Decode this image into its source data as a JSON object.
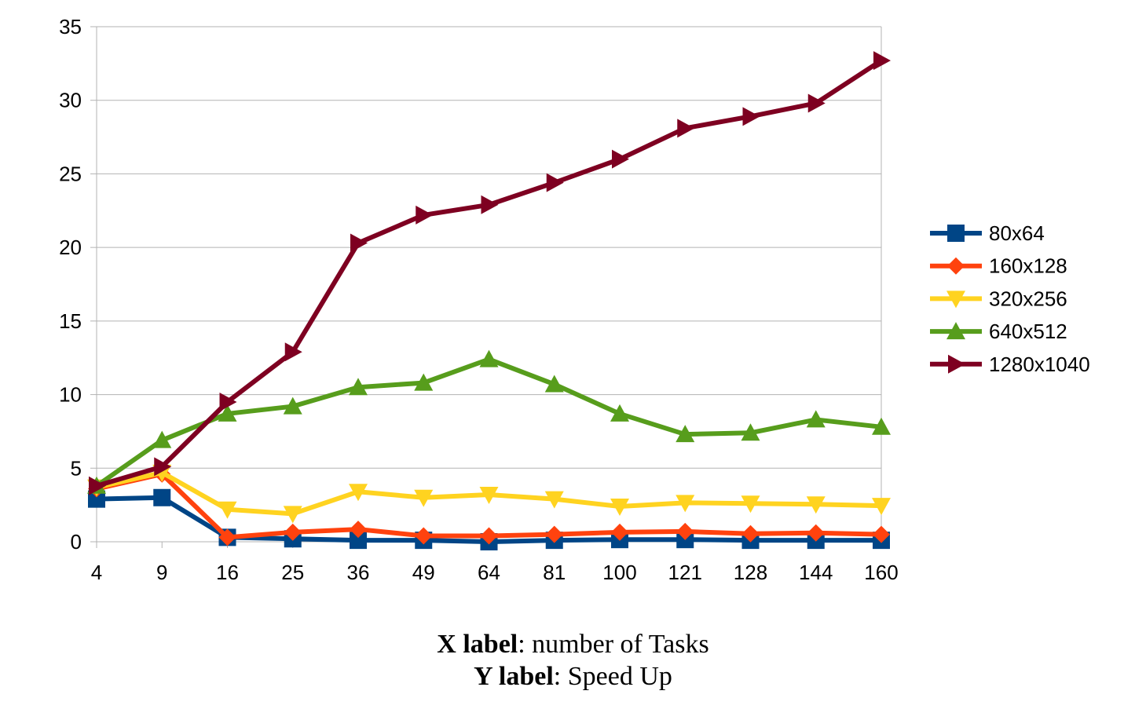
{
  "chart_data": {
    "type": "line",
    "categories": [
      "4",
      "9",
      "16",
      "25",
      "36",
      "49",
      "64",
      "81",
      "100",
      "121",
      "128",
      "144",
      "160"
    ],
    "ylim": [
      0,
      35
    ],
    "yticks": [
      0,
      5,
      10,
      15,
      20,
      25,
      30,
      35
    ],
    "grid": "horizontal",
    "legend_position": "right",
    "series": [
      {
        "name": "80x64",
        "color": "#004586",
        "marker": "square",
        "values": [
          2.9,
          3.0,
          0.3,
          0.2,
          0.1,
          0.1,
          0.0,
          0.1,
          0.15,
          0.15,
          0.1,
          0.1,
          0.1
        ]
      },
      {
        "name": "160x128",
        "color": "#ff420e",
        "marker": "diamond",
        "values": [
          3.6,
          4.6,
          0.3,
          0.65,
          0.85,
          0.4,
          0.4,
          0.5,
          0.65,
          0.7,
          0.55,
          0.6,
          0.5
        ]
      },
      {
        "name": "320x256",
        "color": "#ffd320",
        "marker": "triangle-down",
        "values": [
          3.7,
          4.7,
          2.2,
          1.9,
          3.4,
          3.0,
          3.2,
          2.9,
          2.4,
          2.65,
          2.6,
          2.55,
          2.45
        ]
      },
      {
        "name": "640x512",
        "color": "#579d1c",
        "marker": "triangle-up",
        "values": [
          3.8,
          6.9,
          8.7,
          9.2,
          10.5,
          10.8,
          12.4,
          10.7,
          8.7,
          7.3,
          7.4,
          8.3,
          7.8
        ]
      },
      {
        "name": "1280x1040",
        "color": "#7e0021",
        "marker": "triangle-right",
        "values": [
          3.8,
          5.1,
          9.5,
          12.9,
          20.3,
          22.2,
          22.9,
          24.4,
          26.0,
          28.1,
          28.9,
          29.8,
          32.7
        ]
      }
    ]
  },
  "caption": {
    "x_key": "X label",
    "x_text": ": number of Tasks",
    "y_key": "Y label",
    "y_text": ": Speed Up"
  }
}
